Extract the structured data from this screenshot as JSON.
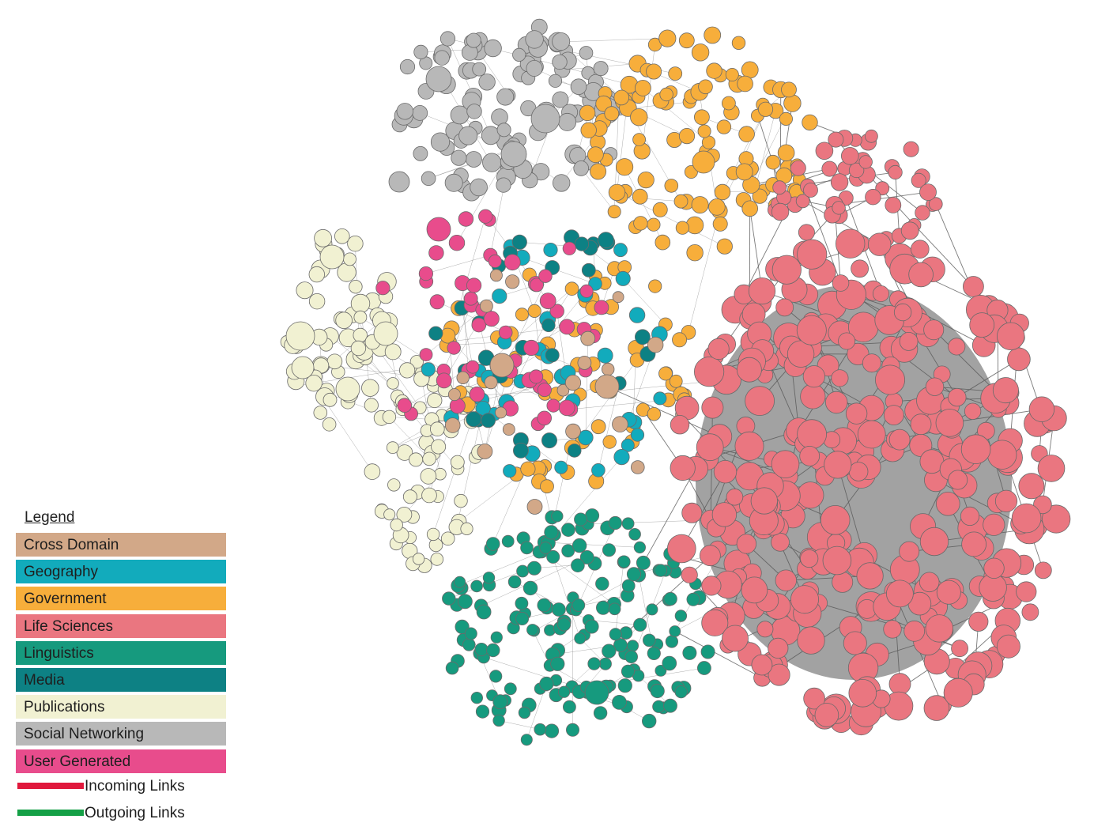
{
  "legend": {
    "title": "Legend",
    "categories": [
      {
        "label": "Cross Domain",
        "color": "#d2a888"
      },
      {
        "label": "Geography",
        "color": "#12abbc"
      },
      {
        "label": "Government",
        "color": "#f7ae3b"
      },
      {
        "label": "Life Sciences",
        "color": "#ea7680"
      },
      {
        "label": "Linguistics",
        "color": "#169a7e"
      },
      {
        "label": "Media",
        "color": "#0d8184"
      },
      {
        "label": "Publications",
        "color": "#f1f1d2"
      },
      {
        "label": "Social Networking",
        "color": "#b8b8b8"
      },
      {
        "label": "User Generated",
        "color": "#e84c8c"
      }
    ],
    "links": [
      {
        "label": "Incoming Links",
        "color": "#e0183c"
      },
      {
        "label": "Outgoing Links",
        "color": "#14a046"
      }
    ]
  },
  "edge_color": "#6b6b6b",
  "node_stroke": "#6a6a6a"
}
